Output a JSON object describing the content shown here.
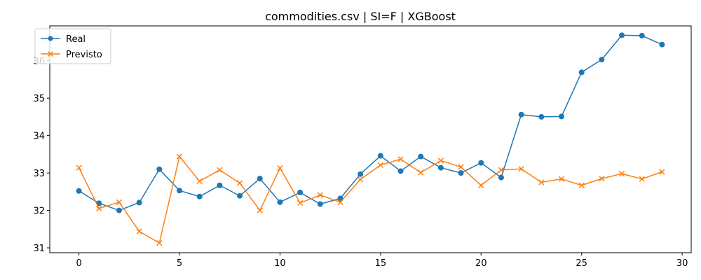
{
  "chart_data": {
    "type": "line",
    "title": "commodities.csv | SI=F | XGBoost",
    "xlabel": "",
    "ylabel": "",
    "xlim": [
      -1.45,
      30.45
    ],
    "ylim": [
      30.87,
      36.93
    ],
    "xticks": [
      0,
      5,
      10,
      15,
      20,
      25,
      30
    ],
    "yticks": [
      31,
      32,
      33,
      34,
      35,
      36
    ],
    "grid": false,
    "legend_position": "top-left",
    "x": [
      0,
      1,
      2,
      3,
      4,
      5,
      6,
      7,
      8,
      9,
      10,
      11,
      12,
      13,
      14,
      15,
      16,
      17,
      18,
      19,
      20,
      21,
      22,
      23,
      24,
      25,
      26,
      27,
      28,
      29
    ],
    "series": [
      {
        "name": "Real",
        "color": "#1f77b4",
        "marker": "circle",
        "values": [
          32.52,
          32.19,
          32.0,
          32.21,
          33.1,
          32.53,
          32.37,
          32.67,
          32.39,
          32.85,
          32.22,
          32.48,
          32.17,
          32.32,
          32.97,
          33.46,
          33.05,
          33.44,
          33.14,
          33.0,
          33.27,
          32.88,
          34.56,
          34.5,
          34.51,
          35.69,
          36.03,
          36.68,
          36.67,
          36.43
        ]
      },
      {
        "name": "Previsto",
        "color": "#ff7f0e",
        "marker": "x",
        "values": [
          33.14,
          32.05,
          32.22,
          31.44,
          31.13,
          33.44,
          32.78,
          33.08,
          32.73,
          32.0,
          33.13,
          32.2,
          32.41,
          32.22,
          32.83,
          33.21,
          33.37,
          33.01,
          33.33,
          33.16,
          32.67,
          33.08,
          33.11,
          32.75,
          32.84,
          32.67,
          32.85,
          32.98,
          32.84,
          33.03
        ]
      }
    ]
  }
}
